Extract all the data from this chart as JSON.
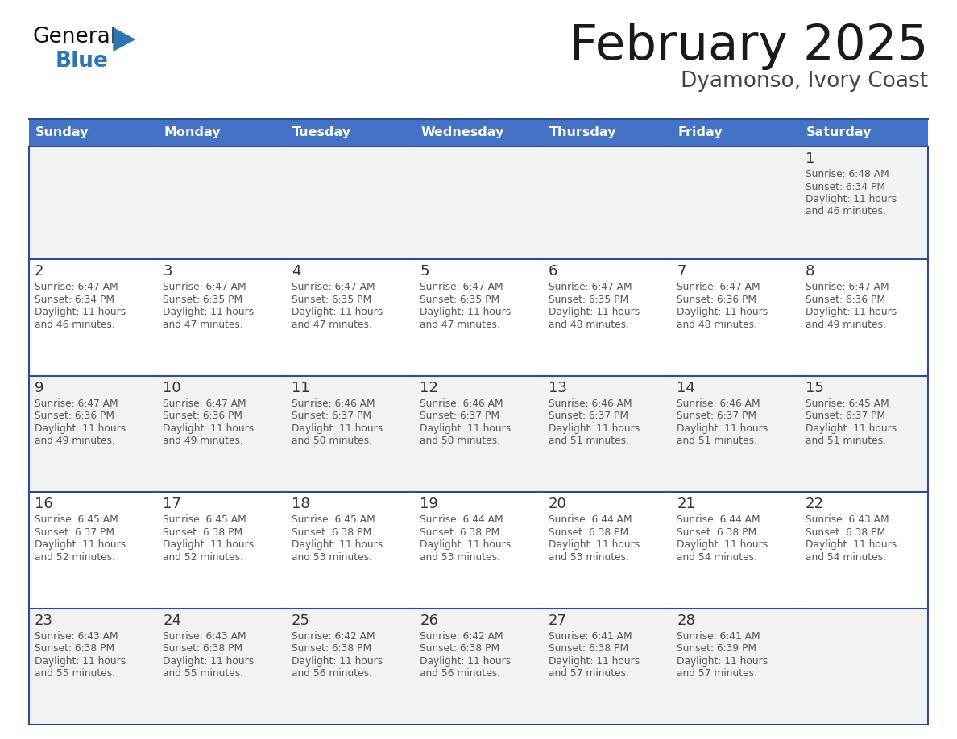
{
  "title": "February 2025",
  "subtitle": "Dyamonso, Ivory Coast",
  "header_bg": "#4472C4",
  "header_text_color": "#FFFFFF",
  "days_of_week": [
    "Sunday",
    "Monday",
    "Tuesday",
    "Wednesday",
    "Thursday",
    "Friday",
    "Saturday"
  ],
  "cell_bg_row0": "#F2F2F2",
  "cell_bg_row1": "#FFFFFF",
  "cell_bg_row2": "#F2F2F2",
  "cell_bg_row3": "#FFFFFF",
  "cell_bg_row4": "#F2F2F2",
  "cell_border_color": "#2E4D8A",
  "day_num_color": "#333333",
  "info_text_color": "#555555",
  "title_color": "#1a1a1a",
  "subtitle_color": "#444444",
  "logo_general_color": "#111111",
  "logo_blue_color": "#2E75B6",
  "logo_triangle_color": "#2E75B6",
  "calendar": [
    [
      null,
      null,
      null,
      null,
      null,
      null,
      {
        "day": 1,
        "sunrise": "6:48 AM",
        "sunset": "6:34 PM",
        "daylight_line1": "Daylight: 11 hours",
        "daylight_line2": "and 46 minutes."
      }
    ],
    [
      {
        "day": 2,
        "sunrise": "6:47 AM",
        "sunset": "6:34 PM",
        "daylight_line1": "Daylight: 11 hours",
        "daylight_line2": "and 46 minutes."
      },
      {
        "day": 3,
        "sunrise": "6:47 AM",
        "sunset": "6:35 PM",
        "daylight_line1": "Daylight: 11 hours",
        "daylight_line2": "and 47 minutes."
      },
      {
        "day": 4,
        "sunrise": "6:47 AM",
        "sunset": "6:35 PM",
        "daylight_line1": "Daylight: 11 hours",
        "daylight_line2": "and 47 minutes."
      },
      {
        "day": 5,
        "sunrise": "6:47 AM",
        "sunset": "6:35 PM",
        "daylight_line1": "Daylight: 11 hours",
        "daylight_line2": "and 47 minutes."
      },
      {
        "day": 6,
        "sunrise": "6:47 AM",
        "sunset": "6:35 PM",
        "daylight_line1": "Daylight: 11 hours",
        "daylight_line2": "and 48 minutes."
      },
      {
        "day": 7,
        "sunrise": "6:47 AM",
        "sunset": "6:36 PM",
        "daylight_line1": "Daylight: 11 hours",
        "daylight_line2": "and 48 minutes."
      },
      {
        "day": 8,
        "sunrise": "6:47 AM",
        "sunset": "6:36 PM",
        "daylight_line1": "Daylight: 11 hours",
        "daylight_line2": "and 49 minutes."
      }
    ],
    [
      {
        "day": 9,
        "sunrise": "6:47 AM",
        "sunset": "6:36 PM",
        "daylight_line1": "Daylight: 11 hours",
        "daylight_line2": "and 49 minutes."
      },
      {
        "day": 10,
        "sunrise": "6:47 AM",
        "sunset": "6:36 PM",
        "daylight_line1": "Daylight: 11 hours",
        "daylight_line2": "and 49 minutes."
      },
      {
        "day": 11,
        "sunrise": "6:46 AM",
        "sunset": "6:37 PM",
        "daylight_line1": "Daylight: 11 hours",
        "daylight_line2": "and 50 minutes."
      },
      {
        "day": 12,
        "sunrise": "6:46 AM",
        "sunset": "6:37 PM",
        "daylight_line1": "Daylight: 11 hours",
        "daylight_line2": "and 50 minutes."
      },
      {
        "day": 13,
        "sunrise": "6:46 AM",
        "sunset": "6:37 PM",
        "daylight_line1": "Daylight: 11 hours",
        "daylight_line2": "and 51 minutes."
      },
      {
        "day": 14,
        "sunrise": "6:46 AM",
        "sunset": "6:37 PM",
        "daylight_line1": "Daylight: 11 hours",
        "daylight_line2": "and 51 minutes."
      },
      {
        "day": 15,
        "sunrise": "6:45 AM",
        "sunset": "6:37 PM",
        "daylight_line1": "Daylight: 11 hours",
        "daylight_line2": "and 51 minutes."
      }
    ],
    [
      {
        "day": 16,
        "sunrise": "6:45 AM",
        "sunset": "6:37 PM",
        "daylight_line1": "Daylight: 11 hours",
        "daylight_line2": "and 52 minutes."
      },
      {
        "day": 17,
        "sunrise": "6:45 AM",
        "sunset": "6:38 PM",
        "daylight_line1": "Daylight: 11 hours",
        "daylight_line2": "and 52 minutes."
      },
      {
        "day": 18,
        "sunrise": "6:45 AM",
        "sunset": "6:38 PM",
        "daylight_line1": "Daylight: 11 hours",
        "daylight_line2": "and 53 minutes."
      },
      {
        "day": 19,
        "sunrise": "6:44 AM",
        "sunset": "6:38 PM",
        "daylight_line1": "Daylight: 11 hours",
        "daylight_line2": "and 53 minutes."
      },
      {
        "day": 20,
        "sunrise": "6:44 AM",
        "sunset": "6:38 PM",
        "daylight_line1": "Daylight: 11 hours",
        "daylight_line2": "and 53 minutes."
      },
      {
        "day": 21,
        "sunrise": "6:44 AM",
        "sunset": "6:38 PM",
        "daylight_line1": "Daylight: 11 hours",
        "daylight_line2": "and 54 minutes."
      },
      {
        "day": 22,
        "sunrise": "6:43 AM",
        "sunset": "6:38 PM",
        "daylight_line1": "Daylight: 11 hours",
        "daylight_line2": "and 54 minutes."
      }
    ],
    [
      {
        "day": 23,
        "sunrise": "6:43 AM",
        "sunset": "6:38 PM",
        "daylight_line1": "Daylight: 11 hours",
        "daylight_line2": "and 55 minutes."
      },
      {
        "day": 24,
        "sunrise": "6:43 AM",
        "sunset": "6:38 PM",
        "daylight_line1": "Daylight: 11 hours",
        "daylight_line2": "and 55 minutes."
      },
      {
        "day": 25,
        "sunrise": "6:42 AM",
        "sunset": "6:38 PM",
        "daylight_line1": "Daylight: 11 hours",
        "daylight_line2": "and 56 minutes."
      },
      {
        "day": 26,
        "sunrise": "6:42 AM",
        "sunset": "6:38 PM",
        "daylight_line1": "Daylight: 11 hours",
        "daylight_line2": "and 56 minutes."
      },
      {
        "day": 27,
        "sunrise": "6:41 AM",
        "sunset": "6:38 PM",
        "daylight_line1": "Daylight: 11 hours",
        "daylight_line2": "and 57 minutes."
      },
      {
        "day": 28,
        "sunrise": "6:41 AM",
        "sunset": "6:39 PM",
        "daylight_line1": "Daylight: 11 hours",
        "daylight_line2": "and 57 minutes."
      },
      null
    ]
  ]
}
